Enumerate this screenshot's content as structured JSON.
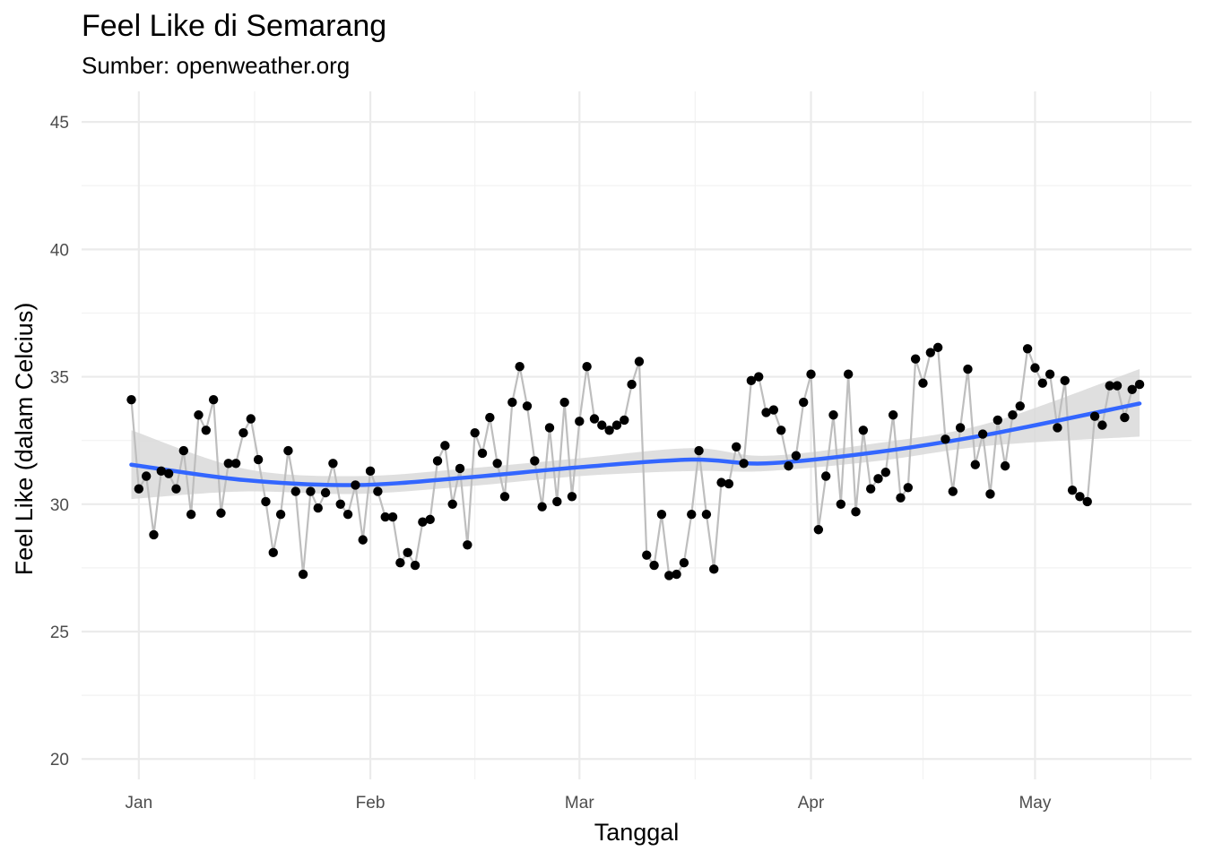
{
  "title": "Feel Like di Semarang",
  "subtitle": "Sumber: openweather.org",
  "chart_data": {
    "type": "line",
    "title": "Feel Like di Semarang",
    "subtitle": "Sumber: openweather.org",
    "xlabel": "Tanggal",
    "ylabel": "Feel Like (dalam Celcius)",
    "x_start_date": "Dec 31",
    "ylim": [
      19.2,
      46.2
    ],
    "y_ticks": [
      20,
      25,
      30,
      35,
      40,
      45
    ],
    "x_ticks": [
      {
        "label": "Jan",
        "day": 1
      },
      {
        "label": "Feb",
        "day": 32
      },
      {
        "label": "Mar",
        "day": 60
      },
      {
        "label": "Apr",
        "day": 91
      },
      {
        "label": "May",
        "day": 121
      }
    ],
    "grid": true,
    "series": [
      {
        "name": "Feel Like",
        "style": "line+points",
        "line_color": "#bebebe",
        "point_color": "#000000",
        "values": [
          34.1,
          30.6,
          31.1,
          28.8,
          31.3,
          31.2,
          30.6,
          32.1,
          29.6,
          33.5,
          32.9,
          34.1,
          29.65,
          31.6,
          31.6,
          32.8,
          33.35,
          31.75,
          30.1,
          28.1,
          29.6,
          32.1,
          30.5,
          27.25,
          30.5,
          29.85,
          30.45,
          31.6,
          30.0,
          29.6,
          30.75,
          28.6,
          31.3,
          30.5,
          29.5,
          29.5,
          27.7,
          28.1,
          27.6,
          29.3,
          29.4,
          31.7,
          32.3,
          30.0,
          31.4,
          28.4,
          32.8,
          32.0,
          33.4,
          31.6,
          30.3,
          34.0,
          35.4,
          33.85,
          31.7,
          29.9,
          33.0,
          30.1,
          34.0,
          30.3,
          33.25,
          35.4,
          33.35,
          33.1,
          32.9,
          33.1,
          33.3,
          34.7,
          35.6,
          28.0,
          27.6,
          29.6,
          27.2,
          27.25,
          27.7,
          29.6,
          32.1,
          29.6,
          27.45,
          30.85,
          30.8,
          32.25,
          31.6,
          34.85,
          35.0,
          33.6,
          33.7,
          32.9,
          31.5,
          31.9,
          34.0,
          35.1,
          29.0,
          31.1,
          33.5,
          30.0,
          35.1,
          29.7,
          32.9,
          30.6,
          31.0,
          31.25,
          33.5,
          30.25,
          30.65,
          35.7,
          34.75,
          35.95,
          36.15,
          32.55,
          30.5,
          33.0,
          35.3,
          31.55,
          32.75,
          30.4,
          33.3,
          31.5,
          33.5,
          33.85,
          36.1,
          35.35,
          34.75,
          35.1,
          33.0,
          34.85,
          30.55,
          30.3,
          30.1,
          33.45,
          33.1,
          34.65,
          34.65,
          33.4,
          34.5,
          34.7
        ]
      },
      {
        "name": "Smooth",
        "style": "smooth",
        "line_color": "#3366ff",
        "band_color": "#d9d9d9",
        "x": [
          0,
          15,
          30,
          45,
          60,
          75,
          85,
          100,
          115,
          135
        ],
        "values": [
          31.55,
          30.95,
          30.75,
          31.05,
          31.45,
          31.75,
          31.6,
          32.05,
          32.75,
          33.95
        ],
        "ci_low": [
          30.2,
          30.5,
          30.4,
          30.7,
          31.1,
          31.3,
          31.3,
          31.7,
          32.3,
          32.65
        ],
        "ci_high": [
          32.9,
          31.4,
          31.1,
          31.4,
          31.8,
          32.2,
          31.9,
          32.4,
          33.2,
          35.3
        ]
      }
    ]
  }
}
